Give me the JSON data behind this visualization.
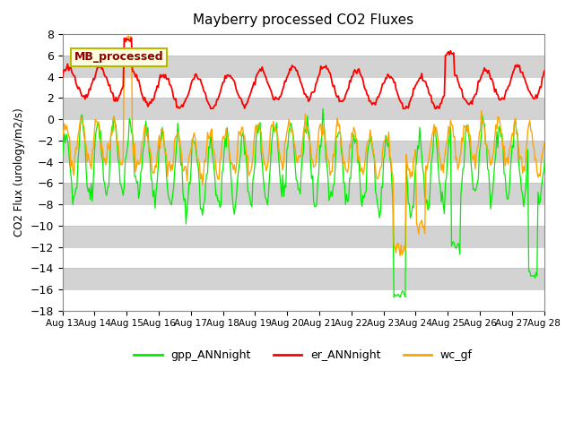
{
  "title": "Mayberry processed CO2 Fluxes",
  "ylabel": "CO2 Flux (urology/m2/s)",
  "xlabel": "",
  "ylim": [
    -18,
    8
  ],
  "yticks": [
    -18,
    -16,
    -14,
    -12,
    -10,
    -8,
    -6,
    -4,
    -2,
    0,
    2,
    4,
    6,
    8
  ],
  "label_box_text": "MB_processed",
  "legend_entries": [
    "gpp_ANNnight",
    "er_ANNnight",
    "wc_gf"
  ],
  "line_colors": [
    "#00EE00",
    "#FF0000",
    "#FFA500"
  ],
  "bg_color": "#DCDCDC",
  "white_band_color": "#FFFFFF",
  "gray_band_color": "#D3D3D3",
  "n_points": 500,
  "xtick_days": [
    13,
    14,
    15,
    16,
    17,
    18,
    19,
    20,
    21,
    22,
    23,
    24,
    25,
    26,
    27,
    28
  ],
  "xtick_labels": [
    "Aug 13",
    "Aug 14",
    "Aug 15",
    "Aug 16",
    "Aug 17",
    "Aug 18",
    "Aug 19",
    "Aug 20",
    "Aug 21",
    "Aug 22",
    "Aug 23",
    "Aug 24",
    "Aug 25",
    "Aug 26",
    "Aug 27",
    "Aug 28"
  ]
}
